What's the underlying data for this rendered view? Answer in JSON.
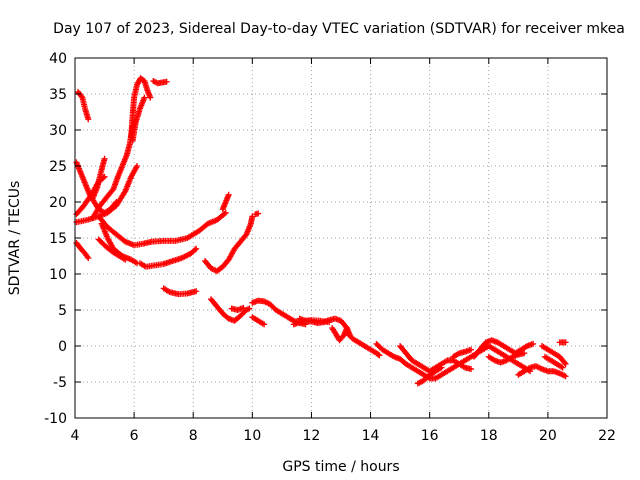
{
  "chart_data": {
    "type": "scatter",
    "title": "Day 107 of 2023, Sidereal Day-to-day VTEC variation (SDTVAR) for receiver mkea",
    "xlabel": "GPS time / hours",
    "ylabel": "SDTVAR / TECUs",
    "xlim": [
      4,
      22
    ],
    "ylim": [
      -10,
      40
    ],
    "xticks": [
      4,
      6,
      8,
      10,
      12,
      14,
      16,
      18,
      20,
      22
    ],
    "yticks": [
      -10,
      -5,
      0,
      5,
      10,
      15,
      20,
      25,
      30,
      35,
      40
    ],
    "grid": true,
    "marker": "+",
    "series_color": "#ff0000",
    "tracks": [
      [
        [
          4.1,
          35.3
        ],
        [
          4.25,
          34.5
        ],
        [
          4.35,
          32.8
        ],
        [
          4.45,
          31.5
        ]
      ],
      [
        [
          5.9,
          29.0
        ],
        [
          5.95,
          32.0
        ],
        [
          6.0,
          34.5
        ],
        [
          6.1,
          36.3
        ],
        [
          6.22,
          37.2
        ],
        [
          6.35,
          36.8
        ],
        [
          6.45,
          35.5
        ],
        [
          6.55,
          34.5
        ]
      ],
      [
        [
          6.65,
          36.8
        ],
        [
          6.8,
          36.5
        ],
        [
          6.95,
          36.6
        ],
        [
          7.1,
          36.7
        ]
      ],
      [
        [
          5.95,
          28.5
        ],
        [
          6.05,
          31.0
        ],
        [
          6.2,
          33.0
        ],
        [
          6.35,
          34.5
        ]
      ],
      [
        [
          4.6,
          17.8
        ],
        [
          4.85,
          19.5
        ],
        [
          5.1,
          20.8
        ],
        [
          5.3,
          21.8
        ],
        [
          5.45,
          23.5
        ],
        [
          5.6,
          25.0
        ],
        [
          5.75,
          26.5
        ],
        [
          5.85,
          28.0
        ],
        [
          5.95,
          30.5
        ]
      ],
      [
        [
          4.05,
          25.5
        ],
        [
          4.2,
          24.0
        ],
        [
          4.35,
          22.5
        ],
        [
          4.5,
          21.0
        ],
        [
          4.65,
          20.0
        ],
        [
          4.8,
          19.0
        ],
        [
          5.0,
          18.5
        ],
        [
          5.2,
          19.0
        ],
        [
          5.4,
          20.0
        ]
      ],
      [
        [
          4.6,
          20.5
        ],
        [
          4.75,
          22.0
        ],
        [
          4.9,
          24.5
        ],
        [
          5.0,
          26.0
        ]
      ],
      [
        [
          4.05,
          18.3
        ],
        [
          4.3,
          19.5
        ],
        [
          4.55,
          21.0
        ],
        [
          4.8,
          22.8
        ],
        [
          5.0,
          23.5
        ]
      ],
      [
        [
          4.05,
          17.2
        ],
        [
          4.4,
          17.5
        ],
        [
          4.8,
          18.0
        ],
        [
          5.1,
          18.5
        ],
        [
          5.4,
          19.5
        ],
        [
          5.7,
          21.5
        ],
        [
          5.9,
          23.5
        ],
        [
          6.1,
          25.0
        ]
      ],
      [
        [
          4.8,
          18.0
        ],
        [
          5.1,
          16.5
        ],
        [
          5.4,
          15.5
        ],
        [
          5.7,
          14.5
        ],
        [
          6.0,
          14.0
        ],
        [
          6.3,
          14.2
        ],
        [
          6.6,
          14.5
        ],
        [
          7.0,
          14.6
        ],
        [
          7.4,
          14.6
        ],
        [
          7.8,
          15.0
        ],
        [
          8.2,
          16.0
        ],
        [
          8.5,
          17.0
        ],
        [
          8.8,
          17.5
        ],
        [
          9.1,
          18.5
        ]
      ],
      [
        [
          9.0,
          19.0
        ],
        [
          9.1,
          20.0
        ],
        [
          9.2,
          21.0
        ]
      ],
      [
        [
          4.9,
          17.0
        ],
        [
          5.1,
          15.0
        ],
        [
          5.3,
          13.5
        ],
        [
          5.6,
          12.5
        ],
        [
          5.9,
          12.0
        ],
        [
          6.1,
          11.5
        ]
      ],
      [
        [
          4.05,
          14.3
        ],
        [
          4.2,
          13.5
        ],
        [
          4.35,
          12.8
        ],
        [
          4.45,
          12.2
        ]
      ],
      [
        [
          4.8,
          14.8
        ],
        [
          5.05,
          13.8
        ],
        [
          5.3,
          13.0
        ],
        [
          5.5,
          12.5
        ],
        [
          5.7,
          12.0
        ]
      ],
      [
        [
          6.2,
          11.5
        ],
        [
          6.4,
          11.0
        ],
        [
          6.7,
          11.2
        ],
        [
          7.0,
          11.4
        ],
        [
          7.3,
          11.8
        ],
        [
          7.6,
          12.2
        ],
        [
          7.9,
          12.8
        ],
        [
          8.1,
          13.5
        ]
      ],
      [
        [
          8.4,
          11.8
        ],
        [
          8.6,
          10.8
        ],
        [
          8.8,
          10.4
        ],
        [
          9.0,
          11.0
        ],
        [
          9.2,
          12.0
        ],
        [
          9.4,
          13.5
        ],
        [
          9.6,
          14.5
        ],
        [
          9.8,
          15.5
        ],
        [
          9.95,
          17.0
        ],
        [
          10.0,
          18.0
        ]
      ],
      [
        [
          10.1,
          18.3
        ],
        [
          10.2,
          18.4
        ]
      ],
      [
        [
          7.0,
          8.0
        ],
        [
          7.2,
          7.5
        ],
        [
          7.5,
          7.2
        ],
        [
          7.8,
          7.3
        ],
        [
          8.1,
          7.6
        ]
      ],
      [
        [
          8.6,
          6.5
        ],
        [
          8.8,
          5.5
        ],
        [
          9.0,
          4.5
        ],
        [
          9.2,
          3.8
        ],
        [
          9.4,
          3.5
        ],
        [
          9.6,
          4.2
        ],
        [
          9.8,
          5.0
        ],
        [
          9.9,
          5.2
        ]
      ],
      [
        [
          9.3,
          5.2
        ],
        [
          9.5,
          5.0
        ],
        [
          9.7,
          5.3
        ]
      ],
      [
        [
          10.0,
          6.0
        ],
        [
          10.2,
          6.3
        ],
        [
          10.4,
          6.2
        ],
        [
          10.6,
          5.8
        ],
        [
          10.8,
          5.0
        ],
        [
          11.0,
          4.5
        ],
        [
          11.2,
          4.0
        ],
        [
          11.4,
          3.5
        ],
        [
          11.6,
          3.2
        ],
        [
          11.8,
          3.0
        ]
      ],
      [
        [
          10.0,
          4.0
        ],
        [
          10.2,
          3.5
        ],
        [
          10.4,
          3.0
        ]
      ],
      [
        [
          11.4,
          3.0
        ],
        [
          11.6,
          3.3
        ],
        [
          11.8,
          3.5
        ],
        [
          12.0,
          3.4
        ],
        [
          12.2,
          3.2
        ],
        [
          12.4,
          3.3
        ],
        [
          12.6,
          3.6
        ],
        [
          12.8,
          3.8
        ],
        [
          13.0,
          3.5
        ],
        [
          13.2,
          2.5
        ],
        [
          13.3,
          1.5
        ]
      ],
      [
        [
          11.6,
          3.8
        ],
        [
          11.8,
          3.5
        ],
        [
          12.0,
          3.6
        ],
        [
          12.3,
          3.5
        ],
        [
          12.6,
          3.3
        ]
      ],
      [
        [
          12.7,
          2.5
        ],
        [
          12.85,
          1.5
        ],
        [
          12.95,
          0.8
        ],
        [
          13.1,
          1.5
        ],
        [
          13.2,
          2.5
        ]
      ],
      [
        [
          13.2,
          1.8
        ],
        [
          13.4,
          1.0
        ],
        [
          13.6,
          0.5
        ],
        [
          13.8,
          0.0
        ],
        [
          14.0,
          -0.5
        ],
        [
          14.2,
          -1.0
        ],
        [
          14.3,
          -1.3
        ]
      ],
      [
        [
          14.2,
          0.3
        ],
        [
          14.4,
          -0.5
        ],
        [
          14.6,
          -1.0
        ],
        [
          14.8,
          -1.5
        ],
        [
          15.0,
          -1.8
        ],
        [
          15.2,
          -2.5
        ],
        [
          15.4,
          -3.0
        ],
        [
          15.6,
          -3.5
        ],
        [
          15.8,
          -4.0
        ],
        [
          16.0,
          -4.5
        ],
        [
          16.2,
          -4.5
        ],
        [
          16.4,
          -4.0
        ],
        [
          16.6,
          -3.5
        ],
        [
          16.8,
          -3.0
        ],
        [
          17.0,
          -2.5
        ],
        [
          17.2,
          -2.0
        ],
        [
          17.4,
          -1.5
        ],
        [
          17.6,
          -1.0
        ],
        [
          17.8,
          -0.5
        ],
        [
          18.0,
          0.0
        ],
        [
          18.2,
          -0.5
        ],
        [
          18.4,
          -1.0
        ],
        [
          18.6,
          -1.5
        ],
        [
          18.8,
          -2.0
        ],
        [
          19.0,
          -2.5
        ],
        [
          19.2,
          -3.0
        ],
        [
          19.4,
          -3.5
        ]
      ],
      [
        [
          15.0,
          0.0
        ],
        [
          15.2,
          -1.0
        ],
        [
          15.4,
          -2.0
        ],
        [
          15.6,
          -2.5
        ],
        [
          15.8,
          -3.0
        ],
        [
          16.0,
          -3.5
        ],
        [
          16.2,
          -3.0
        ],
        [
          16.4,
          -2.5
        ],
        [
          16.6,
          -2.0
        ],
        [
          16.8,
          -2.0
        ],
        [
          17.0,
          -2.5
        ],
        [
          17.2,
          -3.0
        ],
        [
          17.4,
          -3.2
        ]
      ],
      [
        [
          15.6,
          -5.2
        ],
        [
          15.8,
          -4.8
        ],
        [
          16.0,
          -4.0
        ],
        [
          16.2,
          -3.5
        ],
        [
          16.4,
          -3.0
        ]
      ],
      [
        [
          16.8,
          -1.5
        ],
        [
          17.0,
          -1.0
        ],
        [
          17.2,
          -0.8
        ],
        [
          17.4,
          -0.5
        ]
      ],
      [
        [
          17.5,
          -1.5
        ],
        [
          17.7,
          -0.5
        ],
        [
          17.9,
          0.5
        ],
        [
          18.1,
          0.8
        ],
        [
          18.3,
          0.5
        ],
        [
          18.5,
          0.0
        ],
        [
          18.7,
          -0.5
        ],
        [
          18.9,
          -1.0
        ],
        [
          19.1,
          -0.5
        ],
        [
          19.3,
          0.0
        ],
        [
          19.5,
          0.3
        ]
      ],
      [
        [
          18.0,
          -1.5
        ],
        [
          18.2,
          -2.0
        ],
        [
          18.4,
          -2.3
        ],
        [
          18.6,
          -2.0
        ],
        [
          18.8,
          -1.5
        ],
        [
          19.0,
          -1.2
        ],
        [
          19.2,
          -1.0
        ]
      ],
      [
        [
          19.0,
          -4.0
        ],
        [
          19.2,
          -3.5
        ],
        [
          19.4,
          -3.0
        ],
        [
          19.6,
          -2.8
        ],
        [
          19.8,
          -3.2
        ],
        [
          20.0,
          -3.5
        ],
        [
          20.2,
          -3.5
        ],
        [
          20.4,
          -3.8
        ],
        [
          20.6,
          -4.2
        ]
      ],
      [
        [
          19.8,
          0.0
        ],
        [
          20.0,
          -0.5
        ],
        [
          20.2,
          -1.0
        ],
        [
          20.4,
          -1.5
        ],
        [
          20.6,
          -2.5
        ]
      ],
      [
        [
          19.9,
          -1.5
        ],
        [
          20.1,
          -2.0
        ],
        [
          20.3,
          -2.5
        ],
        [
          20.5,
          -3.0
        ]
      ],
      [
        [
          20.4,
          0.5
        ],
        [
          20.6,
          0.5
        ]
      ]
    ]
  }
}
